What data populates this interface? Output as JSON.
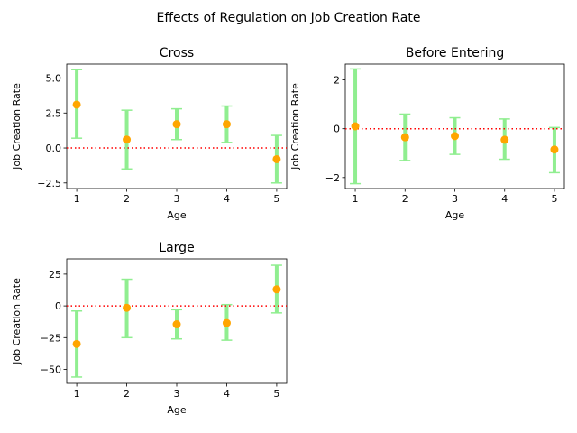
{
  "figure_title": "Effects of Regulation on Job Creation Rate",
  "colors": {
    "errorbar": "#90ee90",
    "marker": "#ffa500",
    "zero_line": "#ff0000"
  },
  "chart_data": [
    {
      "type": "errorbar",
      "title": "Cross",
      "xlabel": "Age",
      "ylabel": "Job Creation Rate",
      "x": [
        1,
        2,
        3,
        4,
        5
      ],
      "y": [
        3.1,
        0.6,
        1.7,
        1.7,
        -0.8
      ],
      "yerr_lower": [
        0.7,
        -1.5,
        0.6,
        0.4,
        -2.5
      ],
      "yerr_upper": [
        5.6,
        2.7,
        2.8,
        3.0,
        0.9
      ],
      "xlim": [
        0.8,
        5.2
      ],
      "ylim": [
        -2.9,
        6.0
      ],
      "xticks": [
        1,
        2,
        3,
        4,
        5
      ],
      "yticks": [
        -2.5,
        0.0,
        2.5,
        5.0
      ],
      "ytick_labels": [
        "−2.5",
        "0.0",
        "2.5",
        "5.0"
      ],
      "reference_line": 0
    },
    {
      "type": "errorbar",
      "title": "Before Entering",
      "xlabel": "Age",
      "ylabel": "Job Creation Rate",
      "x": [
        1,
        2,
        3,
        4,
        5
      ],
      "y": [
        0.1,
        -0.35,
        -0.3,
        -0.45,
        -0.85
      ],
      "yerr_lower": [
        -2.25,
        -1.3,
        -1.05,
        -1.25,
        -1.8
      ],
      "yerr_upper": [
        2.45,
        0.6,
        0.45,
        0.4,
        0.05
      ],
      "xlim": [
        0.8,
        5.2
      ],
      "ylim": [
        -2.45,
        2.65
      ],
      "xticks": [
        1,
        2,
        3,
        4,
        5
      ],
      "yticks": [
        -2,
        0,
        2
      ],
      "ytick_labels": [
        "−2",
        "0",
        "2"
      ],
      "reference_line": 0
    },
    {
      "type": "errorbar",
      "title": "Large",
      "xlabel": "Age",
      "ylabel": "Job Creation Rate",
      "x": [
        1,
        2,
        3,
        4,
        5
      ],
      "y": [
        -30,
        -1.5,
        -14.5,
        -13.5,
        13
      ],
      "yerr_lower": [
        -56,
        -25,
        -26,
        -27,
        -5.5
      ],
      "yerr_upper": [
        -4,
        21,
        -3,
        1,
        32
      ],
      "xlim": [
        0.8,
        5.2
      ],
      "ylim": [
        -61,
        37
      ],
      "xticks": [
        1,
        2,
        3,
        4,
        5
      ],
      "yticks": [
        -50,
        -25,
        0,
        25
      ],
      "ytick_labels": [
        "−50",
        "−25",
        "0",
        "25"
      ],
      "reference_line": 0
    }
  ]
}
